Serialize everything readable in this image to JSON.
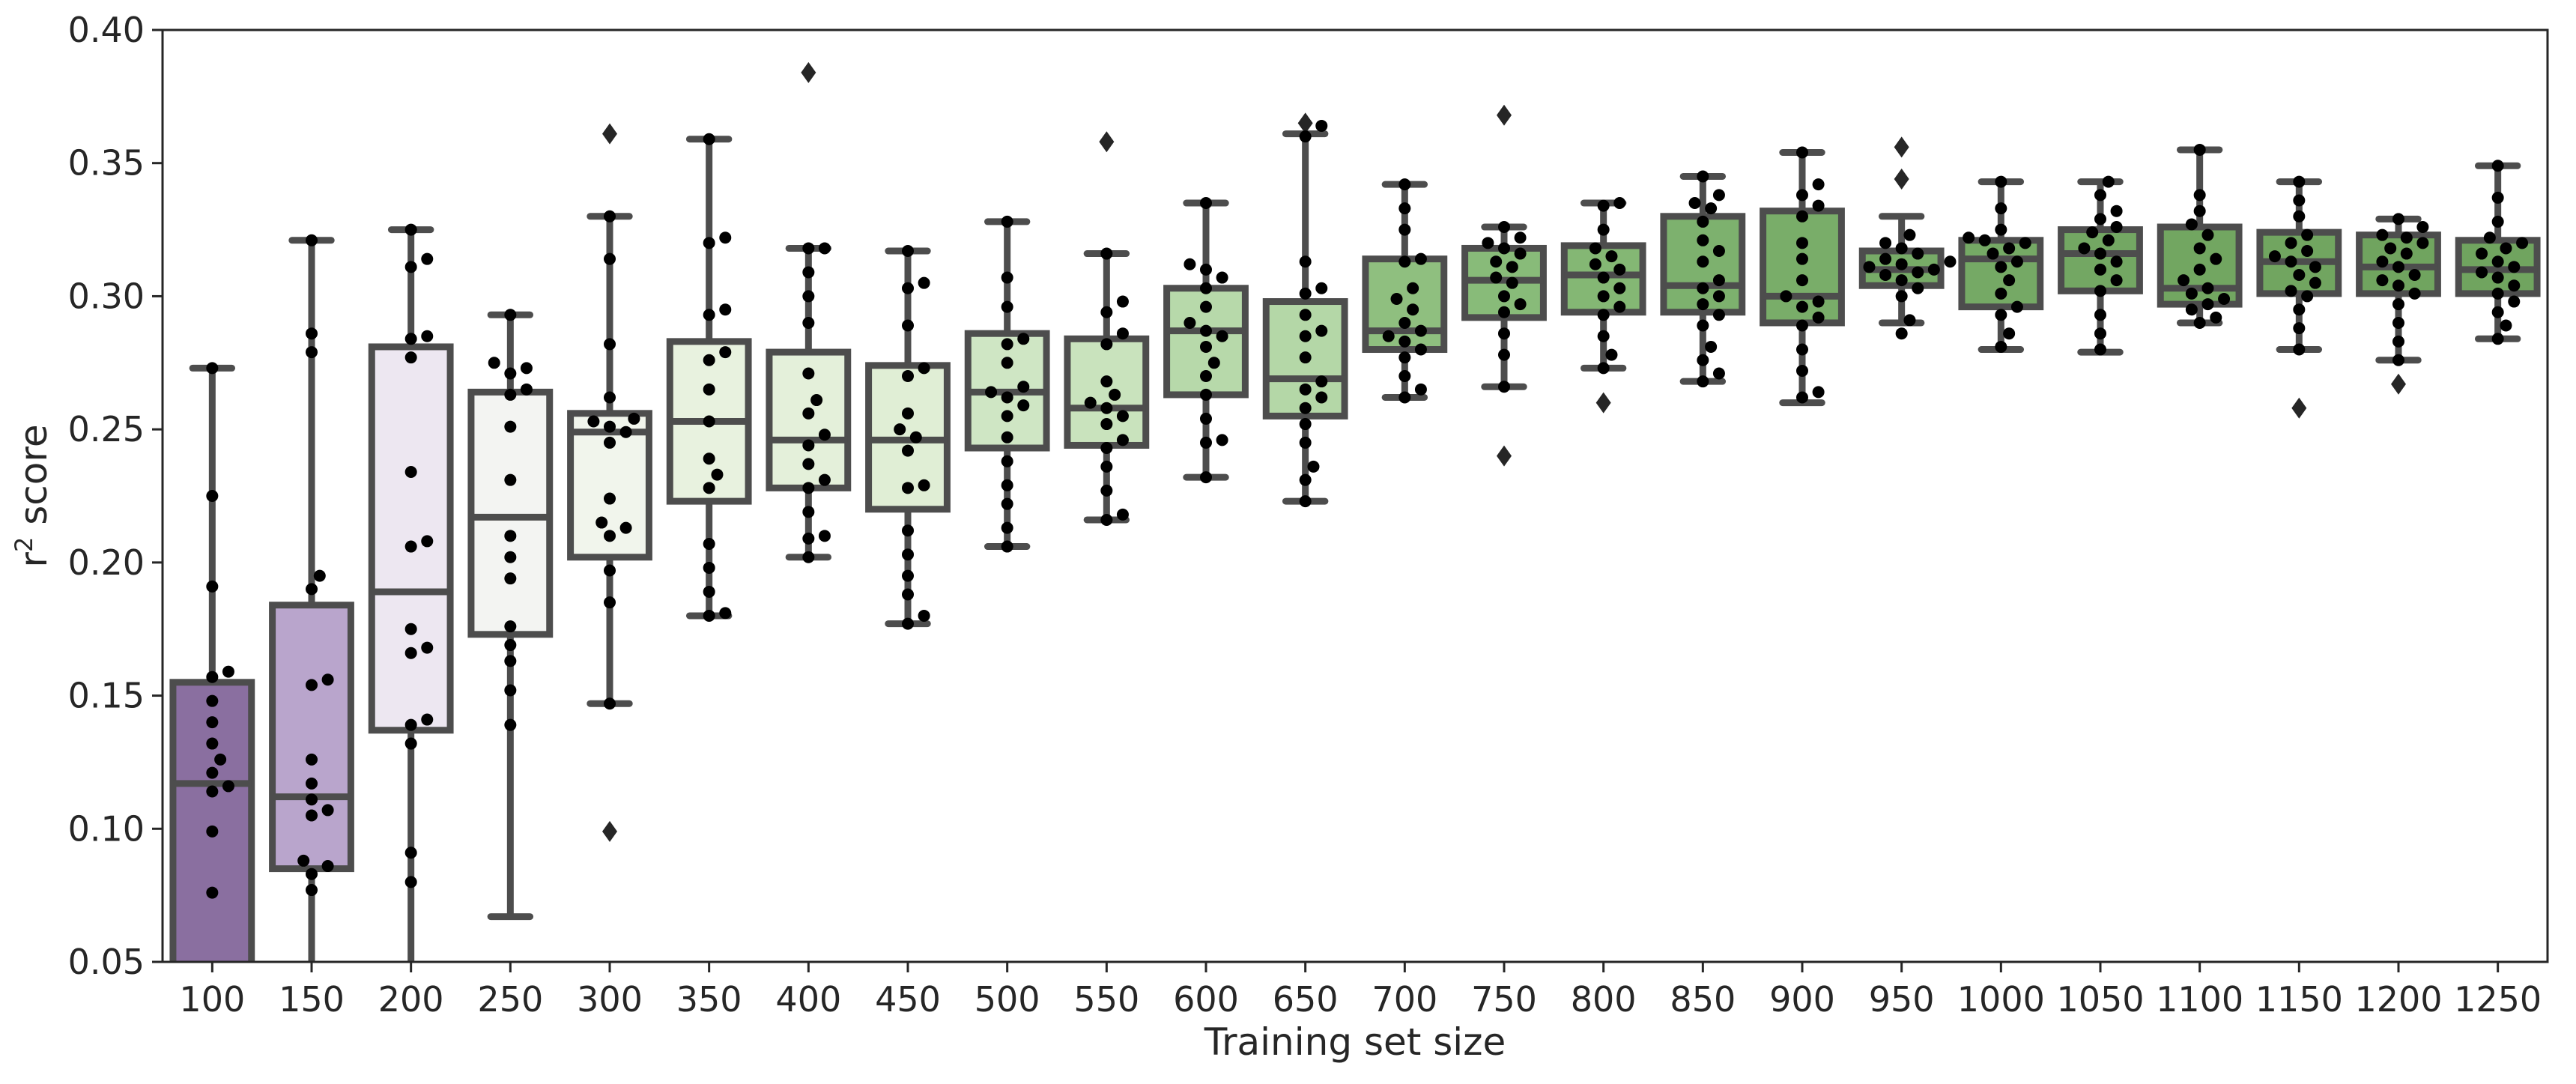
{
  "chart_data": {
    "type": "box",
    "title": "",
    "xlabel": "Training set size",
    "ylabel_main": "r",
    "ylabel_sup": "2",
    "ylabel_rest": " score",
    "ylim": [
      0.05,
      0.4
    ],
    "yticks": [
      "0.05",
      "0.10",
      "0.15",
      "0.20",
      "0.25",
      "0.30",
      "0.35",
      "0.40"
    ],
    "grid": false,
    "legend": "none",
    "box_edge_color": "#4d4d4d",
    "point_color": "#000000",
    "categories": [
      "100",
      "150",
      "200",
      "250",
      "300",
      "350",
      "400",
      "450",
      "500",
      "550",
      "600",
      "650",
      "700",
      "750",
      "800",
      "850",
      "900",
      "950",
      "1000",
      "1050",
      "1100",
      "1150",
      "1200",
      "1250"
    ],
    "colors": [
      "#8a6fa0",
      "#b9a5cc",
      "#ede7f1",
      "#f3f4f2",
      "#f1f5ec",
      "#e8f2df",
      "#e4f0da",
      "#e0eed5",
      "#cfe6c4",
      "#c9e3bd",
      "#b7d9aa",
      "#b4d7a7",
      "#8fbf7f",
      "#88bb79",
      "#84b774",
      "#7db16e",
      "#79ad69",
      "#77ab67",
      "#75a965",
      "#73a763",
      "#72a661",
      "#71a560",
      "#70a45f",
      "#70a45f"
    ],
    "boxes": [
      {
        "q1": 0.03,
        "median": 0.117,
        "q3": 0.155,
        "whisker_low": 0.03,
        "whisker_high": 0.273,
        "outliers": [],
        "points": [
          0.159,
          0.157,
          0.148,
          0.14,
          0.132,
          0.126,
          0.121,
          0.116,
          0.114,
          0.099,
          0.076,
          0.191,
          0.225,
          0.273
        ]
      },
      {
        "q1": 0.085,
        "median": 0.112,
        "q3": 0.184,
        "whisker_low": 0.03,
        "whisker_high": 0.321,
        "outliers": [],
        "points": [
          0.321,
          0.286,
          0.279,
          0.195,
          0.19,
          0.156,
          0.154,
          0.126,
          0.117,
          0.111,
          0.107,
          0.105,
          0.088,
          0.086,
          0.083,
          0.077
        ]
      },
      {
        "q1": 0.137,
        "median": 0.189,
        "q3": 0.281,
        "whisker_low": 0.03,
        "whisker_high": 0.325,
        "outliers": [],
        "points": [
          0.325,
          0.314,
          0.311,
          0.285,
          0.284,
          0.277,
          0.234,
          0.208,
          0.206,
          0.175,
          0.168,
          0.166,
          0.141,
          0.139,
          0.132,
          0.091,
          0.08
        ]
      },
      {
        "q1": 0.173,
        "median": 0.217,
        "q3": 0.264,
        "whisker_low": 0.067,
        "whisker_high": 0.293,
        "outliers": [],
        "points": [
          0.293,
          0.275,
          0.273,
          0.271,
          0.265,
          0.263,
          0.251,
          0.231,
          0.21,
          0.202,
          0.194,
          0.176,
          0.169,
          0.163,
          0.152,
          0.139
        ]
      },
      {
        "q1": 0.202,
        "median": 0.249,
        "q3": 0.256,
        "whisker_low": 0.147,
        "whisker_high": 0.33,
        "outliers": [
          0.361,
          0.099
        ],
        "points": [
          0.33,
          0.314,
          0.282,
          0.262,
          0.254,
          0.253,
          0.251,
          0.249,
          0.245,
          0.224,
          0.215,
          0.213,
          0.21,
          0.197,
          0.185,
          0.147
        ]
      },
      {
        "q1": 0.223,
        "median": 0.253,
        "q3": 0.283,
        "whisker_low": 0.18,
        "whisker_high": 0.359,
        "outliers": [],
        "points": [
          0.359,
          0.322,
          0.32,
          0.295,
          0.293,
          0.279,
          0.276,
          0.265,
          0.253,
          0.239,
          0.233,
          0.228,
          0.207,
          0.198,
          0.189,
          0.181,
          0.18
        ]
      },
      {
        "q1": 0.228,
        "median": 0.246,
        "q3": 0.279,
        "whisker_low": 0.202,
        "whisker_high": 0.318,
        "outliers": [
          0.384
        ],
        "points": [
          0.318,
          0.318,
          0.309,
          0.3,
          0.29,
          0.271,
          0.261,
          0.256,
          0.248,
          0.244,
          0.237,
          0.231,
          0.228,
          0.219,
          0.21,
          0.209,
          0.202
        ]
      },
      {
        "q1": 0.22,
        "median": 0.246,
        "q3": 0.274,
        "whisker_low": 0.177,
        "whisker_high": 0.317,
        "outliers": [],
        "points": [
          0.317,
          0.305,
          0.303,
          0.289,
          0.273,
          0.27,
          0.256,
          0.25,
          0.247,
          0.242,
          0.229,
          0.228,
          0.212,
          0.203,
          0.195,
          0.188,
          0.18,
          0.177
        ]
      },
      {
        "q1": 0.243,
        "median": 0.264,
        "q3": 0.286,
        "whisker_low": 0.206,
        "whisker_high": 0.328,
        "outliers": [],
        "points": [
          0.328,
          0.307,
          0.296,
          0.284,
          0.282,
          0.275,
          0.266,
          0.264,
          0.262,
          0.259,
          0.255,
          0.247,
          0.238,
          0.229,
          0.222,
          0.213,
          0.206
        ]
      },
      {
        "q1": 0.244,
        "median": 0.258,
        "q3": 0.284,
        "whisker_low": 0.216,
        "whisker_high": 0.316,
        "outliers": [
          0.358
        ],
        "points": [
          0.316,
          0.298,
          0.294,
          0.286,
          0.282,
          0.268,
          0.263,
          0.26,
          0.258,
          0.255,
          0.252,
          0.246,
          0.243,
          0.236,
          0.227,
          0.218,
          0.216
        ]
      },
      {
        "q1": 0.263,
        "median": 0.287,
        "q3": 0.303,
        "whisker_low": 0.232,
        "whisker_high": 0.335,
        "outliers": [],
        "points": [
          0.335,
          0.312,
          0.31,
          0.307,
          0.303,
          0.296,
          0.29,
          0.287,
          0.285,
          0.281,
          0.275,
          0.27,
          0.263,
          0.254,
          0.246,
          0.245,
          0.232
        ]
      },
      {
        "q1": 0.255,
        "median": 0.269,
        "q3": 0.298,
        "whisker_low": 0.223,
        "whisker_high": 0.361,
        "outliers": [
          0.365
        ],
        "points": [
          0.364,
          0.36,
          0.313,
          0.303,
          0.301,
          0.293,
          0.287,
          0.285,
          0.277,
          0.268,
          0.265,
          0.262,
          0.258,
          0.252,
          0.245,
          0.236,
          0.231,
          0.223
        ]
      },
      {
        "q1": 0.28,
        "median": 0.287,
        "q3": 0.314,
        "whisker_low": 0.262,
        "whisker_high": 0.342,
        "outliers": [],
        "points": [
          0.342,
          0.333,
          0.325,
          0.314,
          0.313,
          0.303,
          0.299,
          0.295,
          0.29,
          0.287,
          0.285,
          0.283,
          0.28,
          0.277,
          0.27,
          0.265,
          0.262
        ]
      },
      {
        "q1": 0.292,
        "median": 0.306,
        "q3": 0.318,
        "whisker_low": 0.266,
        "whisker_high": 0.326,
        "outliers": [
          0.368,
          0.24
        ],
        "points": [
          0.326,
          0.322,
          0.32,
          0.318,
          0.316,
          0.313,
          0.311,
          0.307,
          0.305,
          0.3,
          0.297,
          0.294,
          0.286,
          0.278,
          0.266
        ]
      },
      {
        "q1": 0.294,
        "median": 0.308,
        "q3": 0.319,
        "whisker_low": 0.273,
        "whisker_high": 0.335,
        "outliers": [
          0.26
        ],
        "points": [
          0.335,
          0.334,
          0.325,
          0.318,
          0.315,
          0.312,
          0.31,
          0.307,
          0.303,
          0.3,
          0.296,
          0.293,
          0.285,
          0.278,
          0.273
        ]
      },
      {
        "q1": 0.294,
        "median": 0.304,
        "q3": 0.33,
        "whisker_low": 0.268,
        "whisker_high": 0.345,
        "outliers": [],
        "points": [
          0.345,
          0.338,
          0.335,
          0.333,
          0.328,
          0.321,
          0.317,
          0.313,
          0.306,
          0.303,
          0.3,
          0.297,
          0.293,
          0.289,
          0.281,
          0.276,
          0.271,
          0.268
        ]
      },
      {
        "q1": 0.29,
        "median": 0.3,
        "q3": 0.332,
        "whisker_low": 0.26,
        "whisker_high": 0.354,
        "outliers": [],
        "points": [
          0.354,
          0.342,
          0.338,
          0.334,
          0.33,
          0.32,
          0.314,
          0.306,
          0.3,
          0.298,
          0.296,
          0.292,
          0.289,
          0.28,
          0.272,
          0.264,
          0.262
        ]
      },
      {
        "q1": 0.304,
        "median": 0.31,
        "q3": 0.317,
        "whisker_low": 0.29,
        "whisker_high": 0.33,
        "outliers": [
          0.356,
          0.344
        ],
        "points": [
          0.323,
          0.32,
          0.318,
          0.316,
          0.314,
          0.313,
          0.312,
          0.311,
          0.31,
          0.309,
          0.308,
          0.306,
          0.303,
          0.3,
          0.291,
          0.286
        ]
      },
      {
        "q1": 0.296,
        "median": 0.314,
        "q3": 0.321,
        "whisker_low": 0.28,
        "whisker_high": 0.343,
        "outliers": [],
        "points": [
          0.343,
          0.333,
          0.325,
          0.322,
          0.321,
          0.32,
          0.318,
          0.316,
          0.313,
          0.311,
          0.306,
          0.301,
          0.296,
          0.293,
          0.286,
          0.281
        ]
      },
      {
        "q1": 0.302,
        "median": 0.316,
        "q3": 0.325,
        "whisker_low": 0.279,
        "whisker_high": 0.343,
        "outliers": [],
        "points": [
          0.343,
          0.338,
          0.332,
          0.329,
          0.326,
          0.324,
          0.321,
          0.318,
          0.316,
          0.313,
          0.31,
          0.306,
          0.302,
          0.293,
          0.286,
          0.28
        ]
      },
      {
        "q1": 0.297,
        "median": 0.303,
        "q3": 0.326,
        "whisker_low": 0.29,
        "whisker_high": 0.355,
        "outliers": [],
        "points": [
          0.355,
          0.338,
          0.332,
          0.327,
          0.323,
          0.318,
          0.314,
          0.31,
          0.306,
          0.303,
          0.301,
          0.299,
          0.297,
          0.295,
          0.292,
          0.29
        ]
      },
      {
        "q1": 0.301,
        "median": 0.313,
        "q3": 0.324,
        "whisker_low": 0.28,
        "whisker_high": 0.343,
        "outliers": [
          0.258
        ],
        "points": [
          0.343,
          0.336,
          0.33,
          0.323,
          0.32,
          0.317,
          0.315,
          0.313,
          0.311,
          0.308,
          0.305,
          0.302,
          0.3,
          0.295,
          0.288,
          0.28
        ]
      },
      {
        "q1": 0.301,
        "median": 0.311,
        "q3": 0.323,
        "whisker_low": 0.276,
        "whisker_high": 0.329,
        "outliers": [
          0.267
        ],
        "points": [
          0.329,
          0.326,
          0.323,
          0.322,
          0.32,
          0.318,
          0.316,
          0.313,
          0.311,
          0.308,
          0.306,
          0.304,
          0.301,
          0.297,
          0.29,
          0.283,
          0.276
        ]
      },
      {
        "q1": 0.301,
        "median": 0.31,
        "q3": 0.321,
        "whisker_low": 0.284,
        "whisker_high": 0.349,
        "outliers": [],
        "points": [
          0.349,
          0.337,
          0.328,
          0.322,
          0.32,
          0.318,
          0.316,
          0.313,
          0.311,
          0.309,
          0.307,
          0.304,
          0.301,
          0.298,
          0.294,
          0.289,
          0.284
        ]
      }
    ]
  }
}
